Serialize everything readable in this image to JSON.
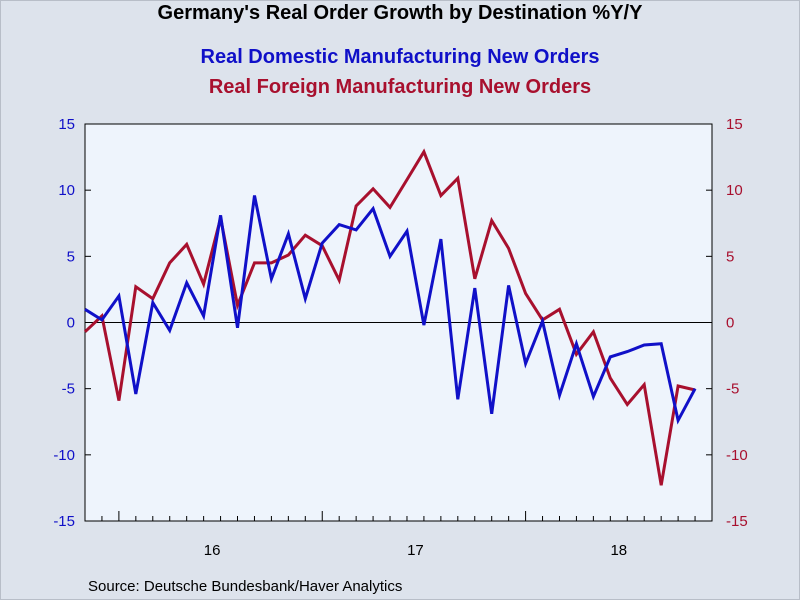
{
  "header": {
    "title": "Germany's Real Order Growth by Destination %Y/Y",
    "subtitle_domestic": "Real Domestic Manufacturing New Orders",
    "subtitle_foreign": "Real Foreign Manufacturing New Orders"
  },
  "footer": {
    "source": "Source:  Deutsche Bundesbank/Haver Analytics"
  },
  "colors": {
    "domestic": "#1010c8",
    "foreign": "#a8102e",
    "plot_background": "#eef4fc",
    "page_background": "#dde3ec"
  },
  "chart_data": {
    "type": "line",
    "x_tick_labels": [
      "16",
      "17",
      "18"
    ],
    "x_range_months": [
      "2015-11",
      "2018-12"
    ],
    "y_left": {
      "ylim": [
        -15,
        15
      ],
      "ticks": [
        15,
        10,
        5,
        0,
        -5,
        -10,
        -15
      ]
    },
    "y_right": {
      "ylim": [
        -15,
        15
      ],
      "ticks": [
        15,
        10,
        5,
        0,
        -5,
        -10,
        -15
      ]
    },
    "zero_line": true,
    "grid": false,
    "months": [
      "2015-11",
      "2015-12",
      "2016-01",
      "2016-02",
      "2016-03",
      "2016-04",
      "2016-05",
      "2016-06",
      "2016-07",
      "2016-08",
      "2016-09",
      "2016-10",
      "2016-11",
      "2016-12",
      "2017-01",
      "2017-02",
      "2017-03",
      "2017-04",
      "2017-05",
      "2017-06",
      "2017-07",
      "2017-08",
      "2017-09",
      "2017-10",
      "2017-11",
      "2017-12",
      "2018-01",
      "2018-02",
      "2018-03",
      "2018-04",
      "2018-05",
      "2018-06",
      "2018-07",
      "2018-08",
      "2018-09",
      "2018-10",
      "2018-11"
    ],
    "series": [
      {
        "name": "Real Domestic Manufacturing New Orders",
        "axis": "left",
        "color": "#1010c8",
        "values": [
          1.0,
          0.2,
          2.0,
          -5.4,
          1.5,
          -0.6,
          3.0,
          0.5,
          8.1,
          -0.4,
          9.6,
          3.3,
          6.7,
          1.8,
          6.0,
          7.4,
          7.0,
          8.6,
          5.0,
          6.9,
          -0.2,
          6.3,
          -5.8,
          2.6,
          -6.9,
          2.8,
          -3.1,
          0.1,
          -5.5,
          -1.6,
          -5.6,
          -2.6,
          -2.2,
          -1.7,
          -1.6,
          -7.4,
          -5.0
        ]
      },
      {
        "name": "Real Foreign Manufacturing New Orders",
        "axis": "right",
        "color": "#a8102e",
        "values": [
          -0.7,
          0.5,
          -5.9,
          2.7,
          1.8,
          4.5,
          5.9,
          2.9,
          7.9,
          1.3,
          4.5,
          4.5,
          5.1,
          6.6,
          5.8,
          3.2,
          8.8,
          10.1,
          8.7,
          10.8,
          12.9,
          9.6,
          10.9,
          3.3,
          7.7,
          5.6,
          2.2,
          0.2,
          1.0,
          -2.4,
          -0.7,
          -4.2,
          -6.2,
          -4.7,
          -12.3,
          -4.8,
          -5.1
        ]
      }
    ]
  }
}
